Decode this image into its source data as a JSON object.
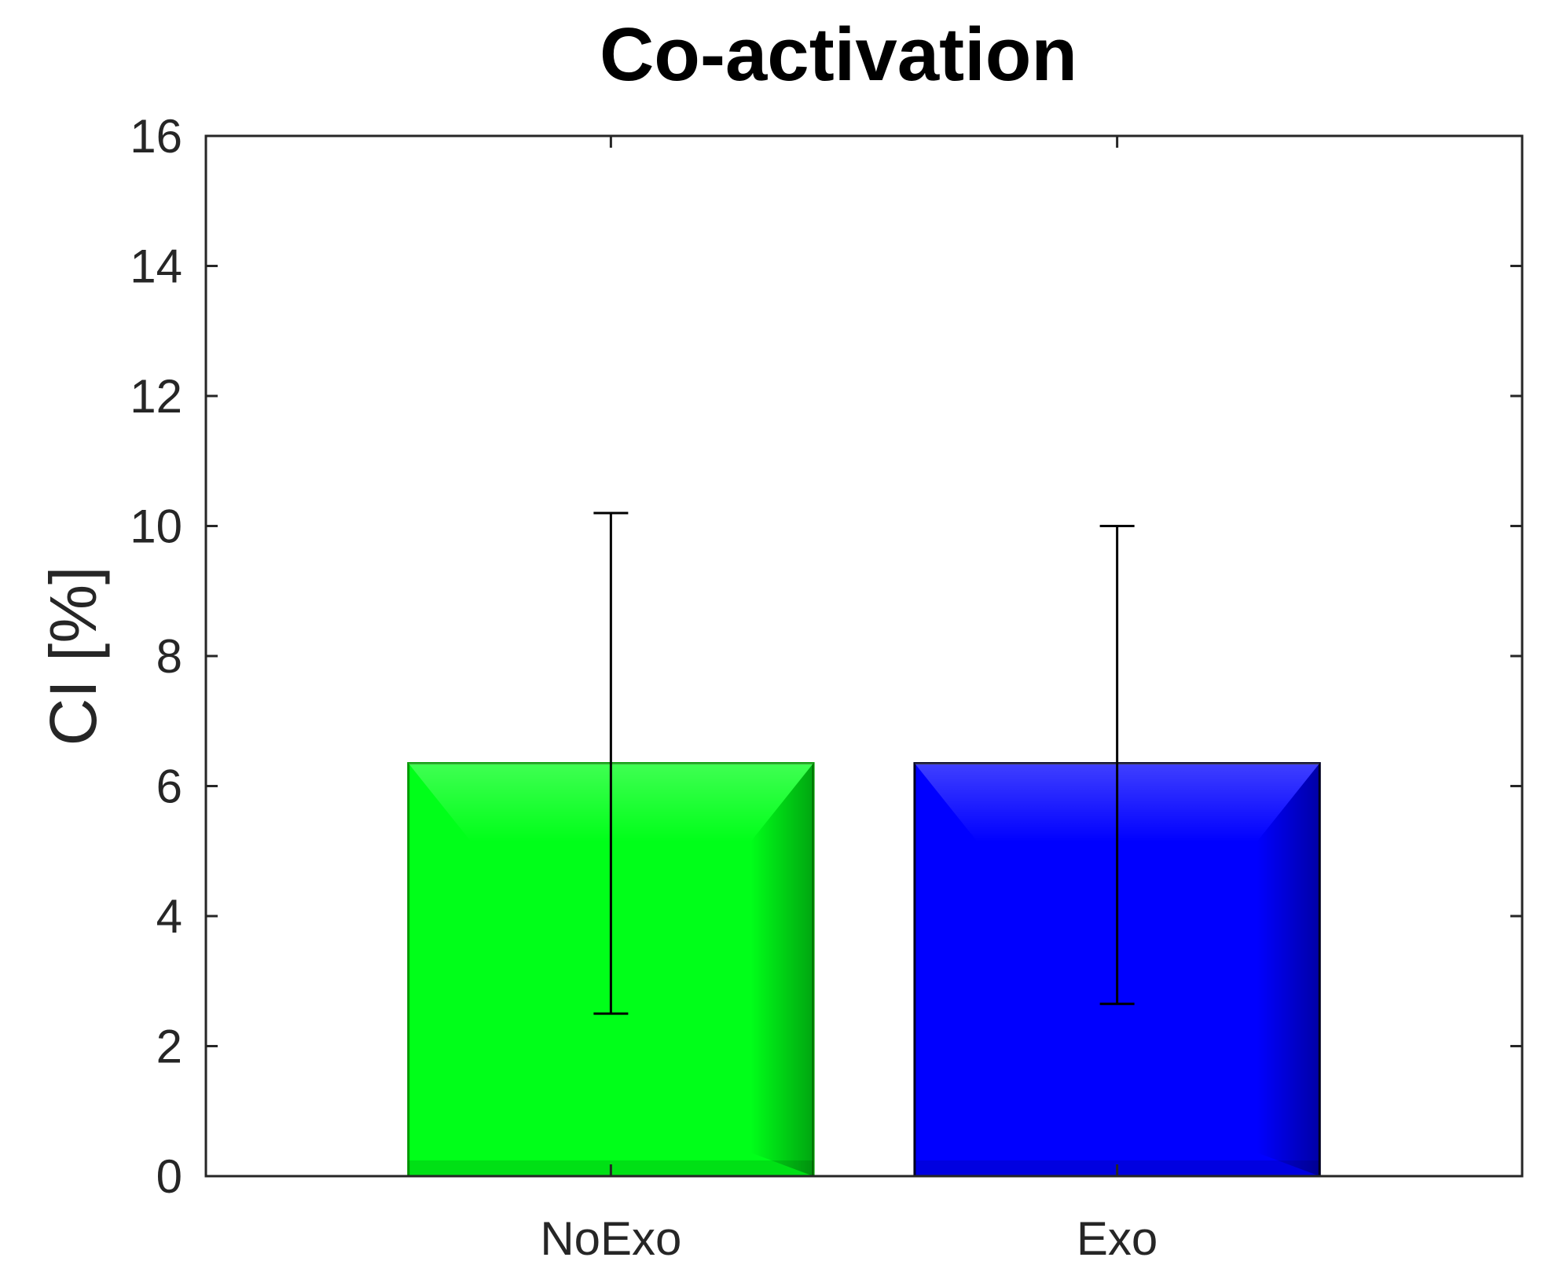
{
  "chart_data": {
    "type": "bar",
    "title": "Co-activation",
    "xlabel": "",
    "ylabel": "CI [%]",
    "categories": [
      "NoExo",
      "Exo"
    ],
    "values": [
      6.35,
      6.35
    ],
    "error_low": [
      2.5,
      2.65
    ],
    "error_high": [
      10.2,
      10.0
    ],
    "colors": [
      "#00ff19",
      "#0000ff"
    ],
    "edge_colors": [
      "#009900",
      "#000022"
    ],
    "ylim": [
      0,
      16
    ],
    "yticks": [
      0,
      2,
      4,
      6,
      8,
      10,
      12,
      14,
      16
    ],
    "grid": false,
    "legend": "none"
  }
}
